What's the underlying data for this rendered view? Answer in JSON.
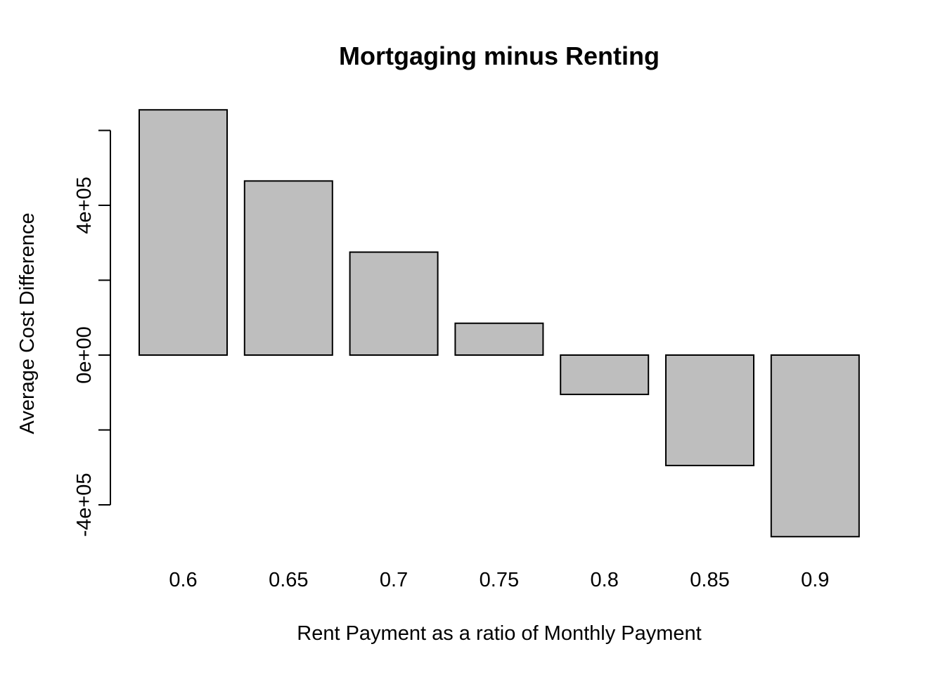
{
  "chart_data": {
    "type": "bar",
    "title": "Mortgaging minus Renting",
    "xlabel": "Rent Payment as a ratio of Monthly Payment",
    "ylabel": "Average Cost Difference",
    "categories": [
      "0.6",
      "0.65",
      "0.7",
      "0.75",
      "0.8",
      "0.85",
      "0.9"
    ],
    "values": [
      655000,
      465000,
      275000,
      85000,
      -105000,
      -295000,
      -485000
    ],
    "ylim": [
      -400000,
      600000
    ],
    "yticks": [
      -400000,
      -200000,
      0,
      200000,
      400000,
      600000
    ],
    "ytick_labels": [
      "-4e+05",
      "",
      "0e+00",
      "",
      "4e+05",
      ""
    ],
    "bar_fill": "#bebebe",
    "bar_stroke": "#000000",
    "grid": false,
    "legend": "none"
  }
}
